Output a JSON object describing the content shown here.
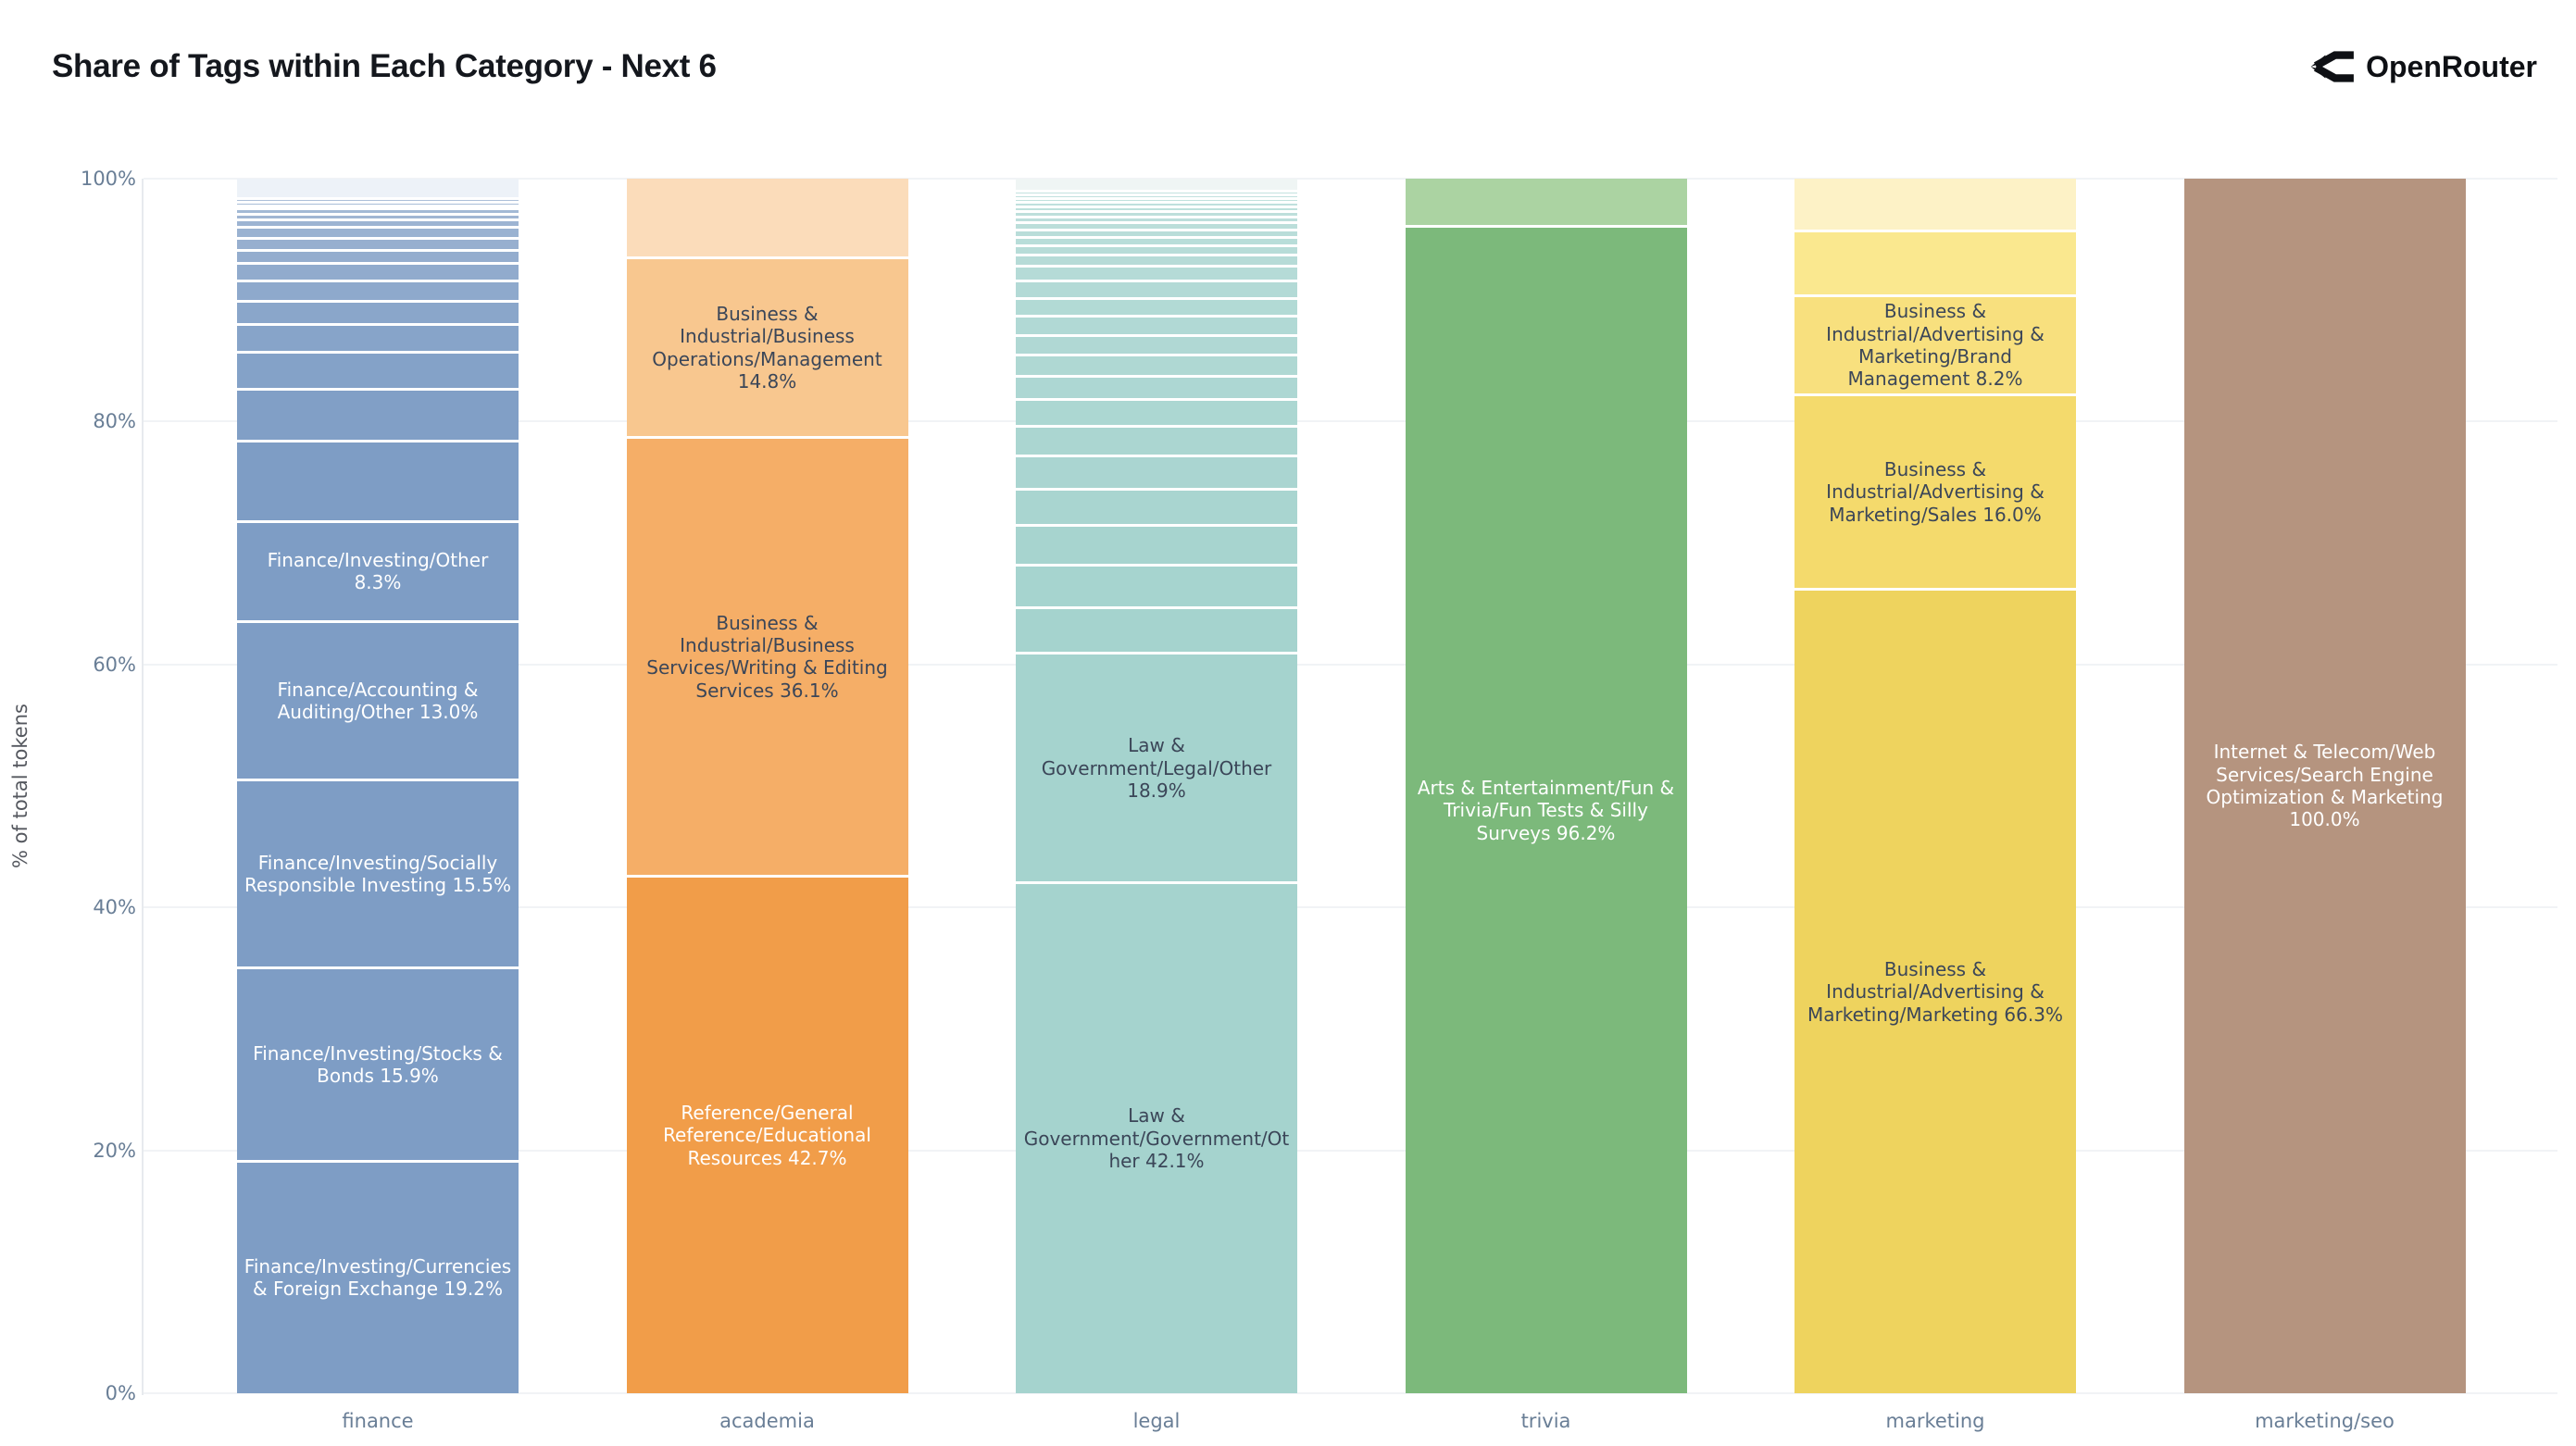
{
  "header": {
    "title": "Share of Tags within Each Category - Next 6",
    "brand": "OpenRouter"
  },
  "chart_data": {
    "type": "bar",
    "stacking": "percent",
    "title": "Share of Tags within Each Category - Next 6",
    "xlabel": "",
    "ylabel": "% of total tokens",
    "ylim": [
      0,
      100
    ],
    "grid": true,
    "legend": "none",
    "yticks": [
      {
        "value": 0,
        "label": "0%"
      },
      {
        "value": 20,
        "label": "20%"
      },
      {
        "value": 40,
        "label": "40%"
      },
      {
        "value": 60,
        "label": "60%"
      },
      {
        "value": 80,
        "label": "80%"
      },
      {
        "value": 100,
        "label": "100%"
      }
    ],
    "categories": [
      "finance",
      "academia",
      "legal",
      "trivia",
      "marketing",
      "marketing/seo"
    ],
    "segment_order": "top_to_bottom",
    "text_dark": "#3b4658",
    "text_light": "#ffffff",
    "bars": [
      {
        "category": "finance",
        "color": "#7e9dc5",
        "stripe_light": "#bccbdf",
        "segments": [
          {
            "value": 1.5,
            "label": "",
            "color": "#edf2f8"
          },
          {
            "value": 0.3,
            "label": ""
          },
          {
            "value": 0.3,
            "label": ""
          },
          {
            "value": 0.3,
            "label": ""
          },
          {
            "value": 0.4,
            "label": ""
          },
          {
            "value": 0.5,
            "label": ""
          },
          {
            "value": 0.6,
            "label": ""
          },
          {
            "value": 0.9,
            "label": ""
          },
          {
            "value": 1.0,
            "label": ""
          },
          {
            "value": 1.1,
            "label": ""
          },
          {
            "value": 1.4,
            "label": ""
          },
          {
            "value": 1.7,
            "label": ""
          },
          {
            "value": 1.9,
            "label": ""
          },
          {
            "value": 2.3,
            "label": ""
          },
          {
            "value": 3.0,
            "label": ""
          },
          {
            "value": 4.3,
            "label": ""
          },
          {
            "value": 6.6,
            "label": ""
          },
          {
            "value": 8.3,
            "label": "Finance/Investing/Other 8.3%",
            "color": "#7e9dc5",
            "text": "#ffffff"
          },
          {
            "value": 13.0,
            "label": "Finance/Accounting & Auditing/Other 13.0%",
            "color": "#7e9dc5",
            "text": "#ffffff"
          },
          {
            "value": 15.5,
            "label": "Finance/Investing/Socially Responsible Investing 15.5%",
            "color": "#7e9dc5",
            "text": "#ffffff"
          },
          {
            "value": 15.9,
            "label": "Finance/Investing/Stocks & Bonds 15.9%",
            "color": "#7e9dc5",
            "text": "#ffffff"
          },
          {
            "value": 19.2,
            "label": "Finance/Investing/Currencies & Foreign Exchange 19.2%",
            "color": "#7e9dc5",
            "text": "#ffffff"
          }
        ]
      },
      {
        "category": "academia",
        "color": "#f5ae67",
        "stripe_light": "#fbdcba",
        "segments": [
          {
            "value": 6.4,
            "label": "",
            "color": "#fbdcba"
          },
          {
            "value": 14.8,
            "label": "Business & Industrial/Business Operations/Management 14.8%",
            "color": "#f8c78f",
            "text": "#3b4658"
          },
          {
            "value": 36.1,
            "label": "Business & Industrial/Business Services/Writing & Editing Services 36.1%",
            "color": "#f5ae67",
            "text": "#3b4658"
          },
          {
            "value": 42.7,
            "label": "Reference/General Reference/Educational Resources 42.7%",
            "color": "#f19d49",
            "text": "#ffffff"
          }
        ]
      },
      {
        "category": "legal",
        "color": "#a5d3ce",
        "stripe_light": "#cde7e4",
        "segments": [
          {
            "value": 0.9,
            "label": "",
            "color": "#eff5f4"
          },
          {
            "value": 0.3,
            "label": ""
          },
          {
            "value": 0.3,
            "label": ""
          },
          {
            "value": 0.35,
            "label": ""
          },
          {
            "value": 0.35,
            "label": ""
          },
          {
            "value": 0.4,
            "label": ""
          },
          {
            "value": 0.45,
            "label": ""
          },
          {
            "value": 0.5,
            "label": ""
          },
          {
            "value": 0.55,
            "label": ""
          },
          {
            "value": 0.6,
            "label": ""
          },
          {
            "value": 0.7,
            "label": ""
          },
          {
            "value": 0.8,
            "label": ""
          },
          {
            "value": 0.9,
            "label": ""
          },
          {
            "value": 1.25,
            "label": ""
          },
          {
            "value": 1.4,
            "label": ""
          },
          {
            "value": 1.5,
            "label": ""
          },
          {
            "value": 1.55,
            "label": ""
          },
          {
            "value": 1.6,
            "label": ""
          },
          {
            "value": 1.75,
            "label": ""
          },
          {
            "value": 1.95,
            "label": ""
          },
          {
            "value": 2.2,
            "label": ""
          },
          {
            "value": 2.45,
            "label": ""
          },
          {
            "value": 2.7,
            "label": ""
          },
          {
            "value": 3.0,
            "label": ""
          },
          {
            "value": 3.25,
            "label": ""
          },
          {
            "value": 3.5,
            "label": ""
          },
          {
            "value": 3.8,
            "label": ""
          },
          {
            "value": 18.9,
            "label": "Law & Government/Legal/Other 18.9%",
            "color": "#a5d3ce",
            "text": "#3b4658"
          },
          {
            "value": 42.1,
            "label": "Law & Government/Government/Other 42.1%",
            "color": "#a5d3ce",
            "text": "#3b4658"
          }
        ]
      },
      {
        "category": "trivia",
        "color": "#7cb97b",
        "stripe_light": "#abd3a2",
        "segments": [
          {
            "value": 3.8,
            "label": "",
            "color": "#abd3a2"
          },
          {
            "value": 96.2,
            "label": "Arts & Entertainment/Fun & Trivia/Fun Tests & Silly Surveys 96.2%",
            "color": "#7cb97b",
            "text": "#ffffff"
          }
        ]
      },
      {
        "category": "marketing",
        "color": "#eed35e",
        "stripe_light": "#fdf2c6",
        "segments": [
          {
            "value": 4.2,
            "label": "",
            "color": "#fdf2c6"
          },
          {
            "value": 5.3,
            "label": "",
            "color": "#fae88f"
          },
          {
            "value": 8.2,
            "label": "Business & Industrial/Advertising & Marketing/Brand Management 8.2%",
            "color": "#f8e07e",
            "text": "#3b4658"
          },
          {
            "value": 16.0,
            "label": "Business & Industrial/Advertising & Marketing/Sales 16.0%",
            "color": "#f4da6c",
            "text": "#3b4658"
          },
          {
            "value": 66.3,
            "label": "Business & Industrial/Advertising & Marketing/Marketing 66.3%",
            "color": "#eed35e",
            "text": "#3b4658"
          }
        ]
      },
      {
        "category": "marketing/seo",
        "color": "#b5947f",
        "stripe_light": "#d3bcae",
        "segments": [
          {
            "value": 100.0,
            "label": "Internet & Telecom/Web Services/Search Engine Optimization & Marketing 100.0%",
            "color": "#b5947f",
            "text": "#ffffff"
          }
        ]
      }
    ]
  }
}
